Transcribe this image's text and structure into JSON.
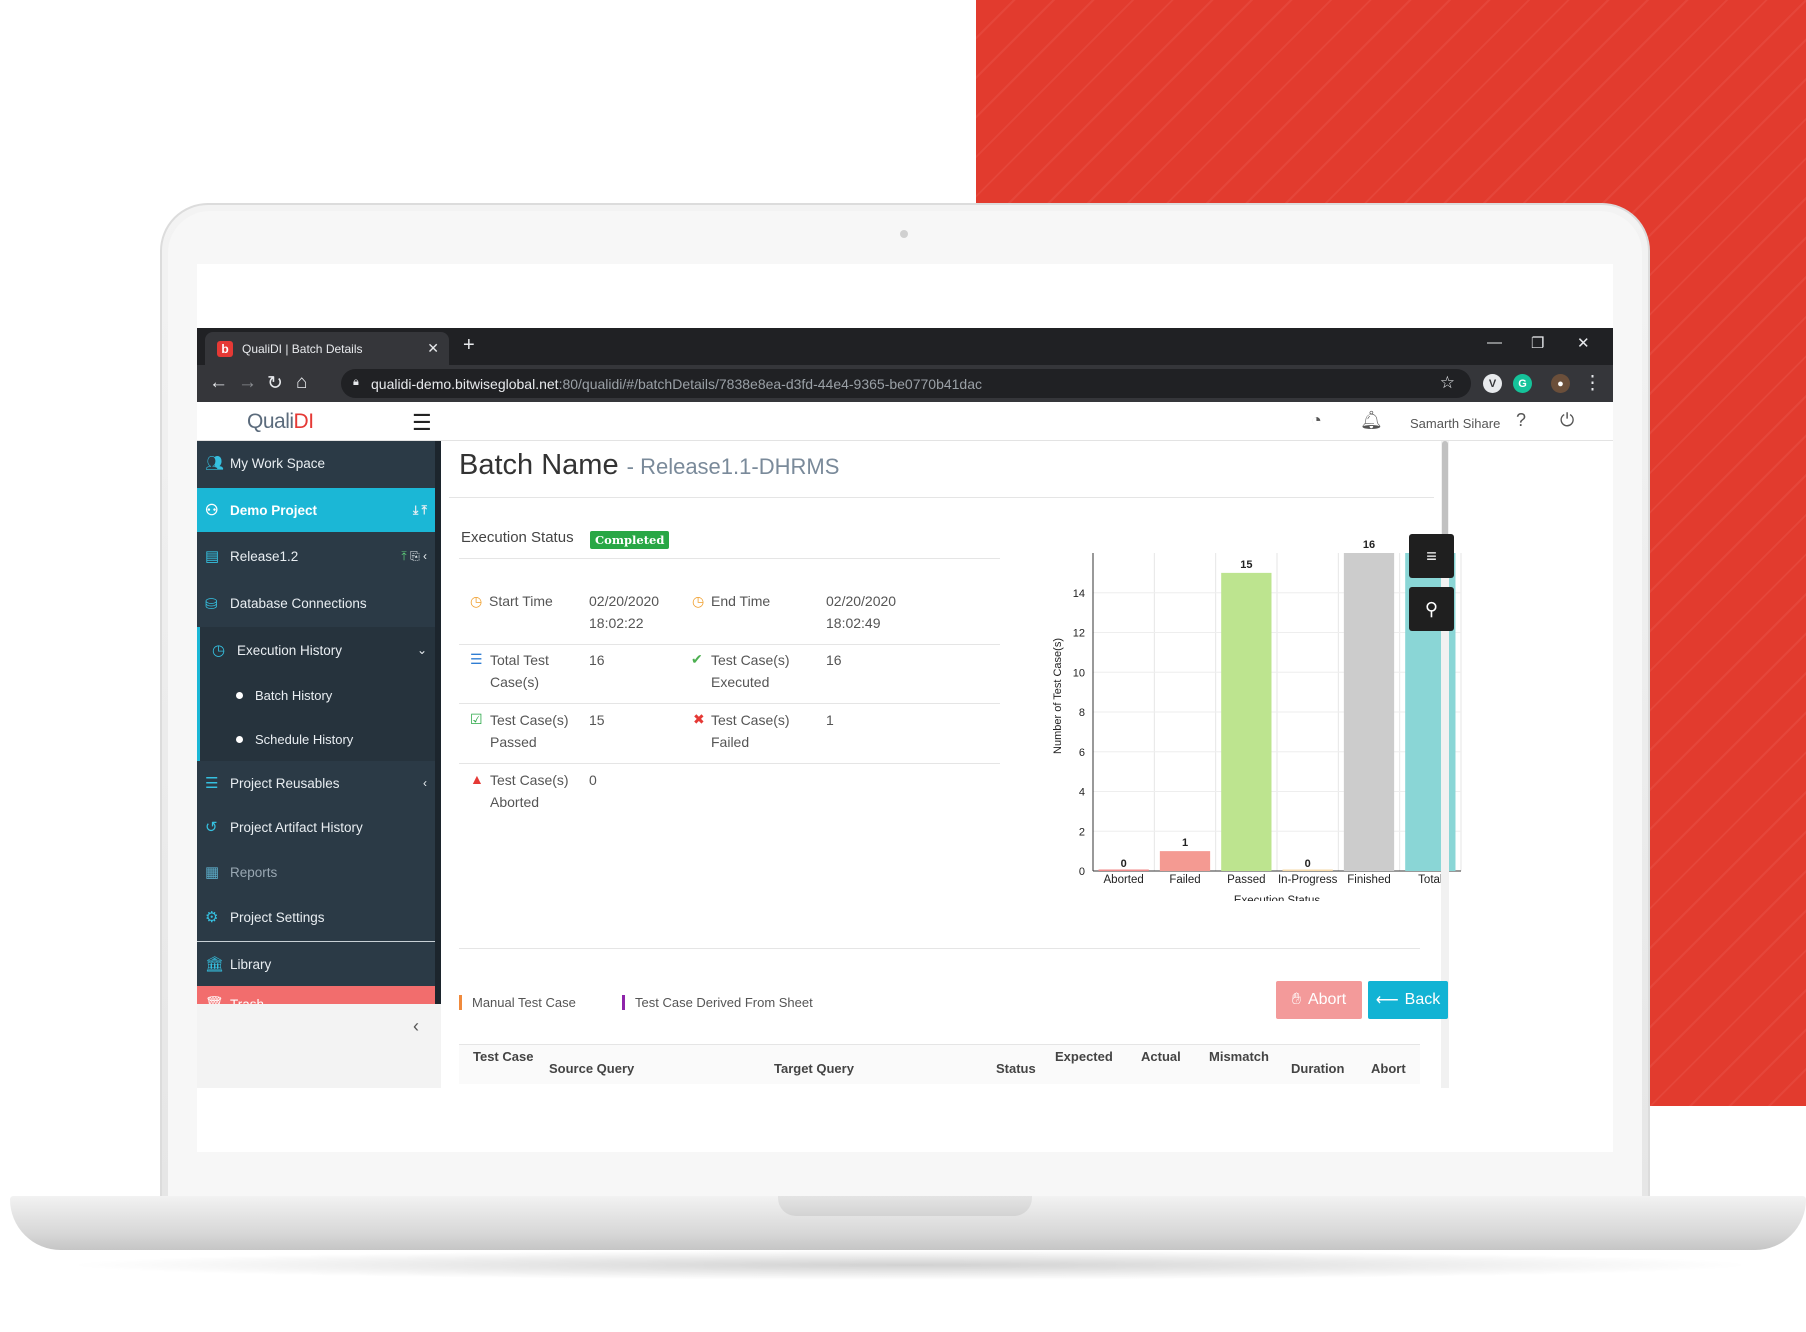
{
  "browser": {
    "tab_title": "QualiDI | Batch Details",
    "tab_favicon": "b",
    "new_tab": "+",
    "url_host": "qualidi-demo.bitwiseglobal.net",
    "url_path": ":80/qualidi/#/batchDetails/7838e8ea-d3fd-44e4-9365-be0770b41dac"
  },
  "app": {
    "brand_quali": "Quali",
    "brand_di": "DI",
    "user_name": "Samarth Sihare"
  },
  "sidebar": {
    "items": [
      {
        "label": "My Work Space"
      },
      {
        "label": "Demo Project"
      },
      {
        "label": "Release1.2"
      },
      {
        "label": "Database Connections"
      },
      {
        "label": "Execution History"
      },
      {
        "label": "Batch History"
      },
      {
        "label": "Schedule History"
      },
      {
        "label": "Project Reusables"
      },
      {
        "label": "Project Artifact History"
      },
      {
        "label": "Reports"
      },
      {
        "label": "Project Settings"
      },
      {
        "label": "Library"
      },
      {
        "label": "Trash"
      }
    ]
  },
  "main": {
    "title": "Batch Name",
    "subtitle": "- Release1.1-DHRMS",
    "execution_status_label": "Execution Status",
    "execution_status_value": "Completed",
    "start_time_label": "Start Time",
    "start_time_date": "02/20/2020",
    "start_time_time": "18:02:22",
    "end_time_label": "End Time",
    "end_time_date": "02/20/2020",
    "end_time_time": "18:02:49",
    "total_label_1": "Total Test",
    "total_label_2": "Case(s)",
    "total_value": "16",
    "executed_label_1": "Test Case(s)",
    "executed_label_2": "Executed",
    "executed_value": "16",
    "passed_label_1": "Test Case(s)",
    "passed_label_2": "Passed",
    "passed_value": "15",
    "failed_label_1": "Test Case(s)",
    "failed_label_2": "Failed",
    "failed_value": "1",
    "aborted_label_1": "Test Case(s)",
    "aborted_label_2": "Aborted",
    "aborted_value": "0",
    "legend_manual": "Manual Test Case",
    "legend_derived": "Test Case Derived From Sheet",
    "abort_button": "Abort",
    "back_button": "Back"
  },
  "table": {
    "headers": [
      "Test Case",
      "Source Query",
      "Target Query",
      "Status",
      "Expected",
      "Actual",
      "Mismatch",
      "Duration",
      "Abort"
    ]
  },
  "colors": {
    "red_backdrop": "#e23b2e",
    "accent_cyan": "#1bb7d6",
    "sidebar_bg": "#2b3a46",
    "completed_green": "#28a745",
    "abort_pink": "#f39a9a"
  },
  "chart_data": {
    "type": "bar",
    "categories": [
      "Aborted",
      "Failed",
      "Passed",
      "In-Progress",
      "Finished",
      "Total"
    ],
    "values": [
      0,
      1,
      15,
      0,
      16,
      16
    ],
    "colors": [
      "#f08a8a",
      "#f49a92",
      "#bde48f",
      "#f5d9a8",
      "#cccccc",
      "#8ad6d6"
    ],
    "xlabel": "Execution Status",
    "ylabel": "Number of Test Case(s)",
    "yticks": [
      0,
      2,
      4,
      6,
      8,
      10,
      12,
      14
    ],
    "ylim": [
      0,
      16
    ],
    "grid": true
  }
}
